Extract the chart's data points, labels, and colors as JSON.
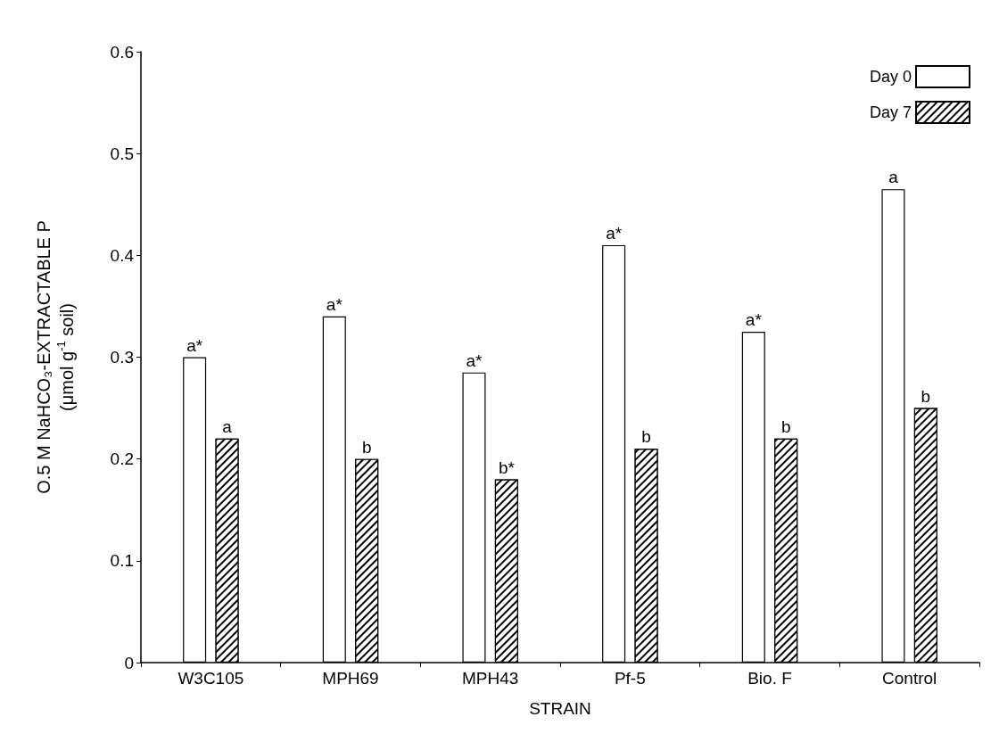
{
  "chart_data": {
    "type": "bar",
    "xlabel": "STRAIN",
    "ylabel": "O.5 M NaHCO₃-EXTRACTABLE P\n(μmol g$^{-1}$ soil)",
    "categories": [
      "W3C105",
      "MPH69",
      "MPH43",
      "Pf-5",
      "Bio. F",
      "Control"
    ],
    "series": [
      {
        "name": "Day 0",
        "color": "#ffffff",
        "values": [
          0.3,
          0.34,
          0.285,
          0.41,
          0.325,
          0.465
        ],
        "value_labels": [
          "a*",
          "a*",
          "a*",
          "a*",
          "a*",
          "a"
        ]
      },
      {
        "name": "Day 7",
        "color": "#000000",
        "values": [
          0.22,
          0.2,
          0.18,
          0.21,
          0.22,
          0.25
        ],
        "value_labels": [
          "a",
          "b",
          "b*",
          "b",
          "b",
          "b"
        ]
      }
    ],
    "ylim": [
      0,
      0.6
    ],
    "yticks": [
      0,
      0.1,
      0.2,
      0.3,
      0.4,
      0.5,
      0.6
    ],
    "grid": false,
    "legend": "top right"
  }
}
